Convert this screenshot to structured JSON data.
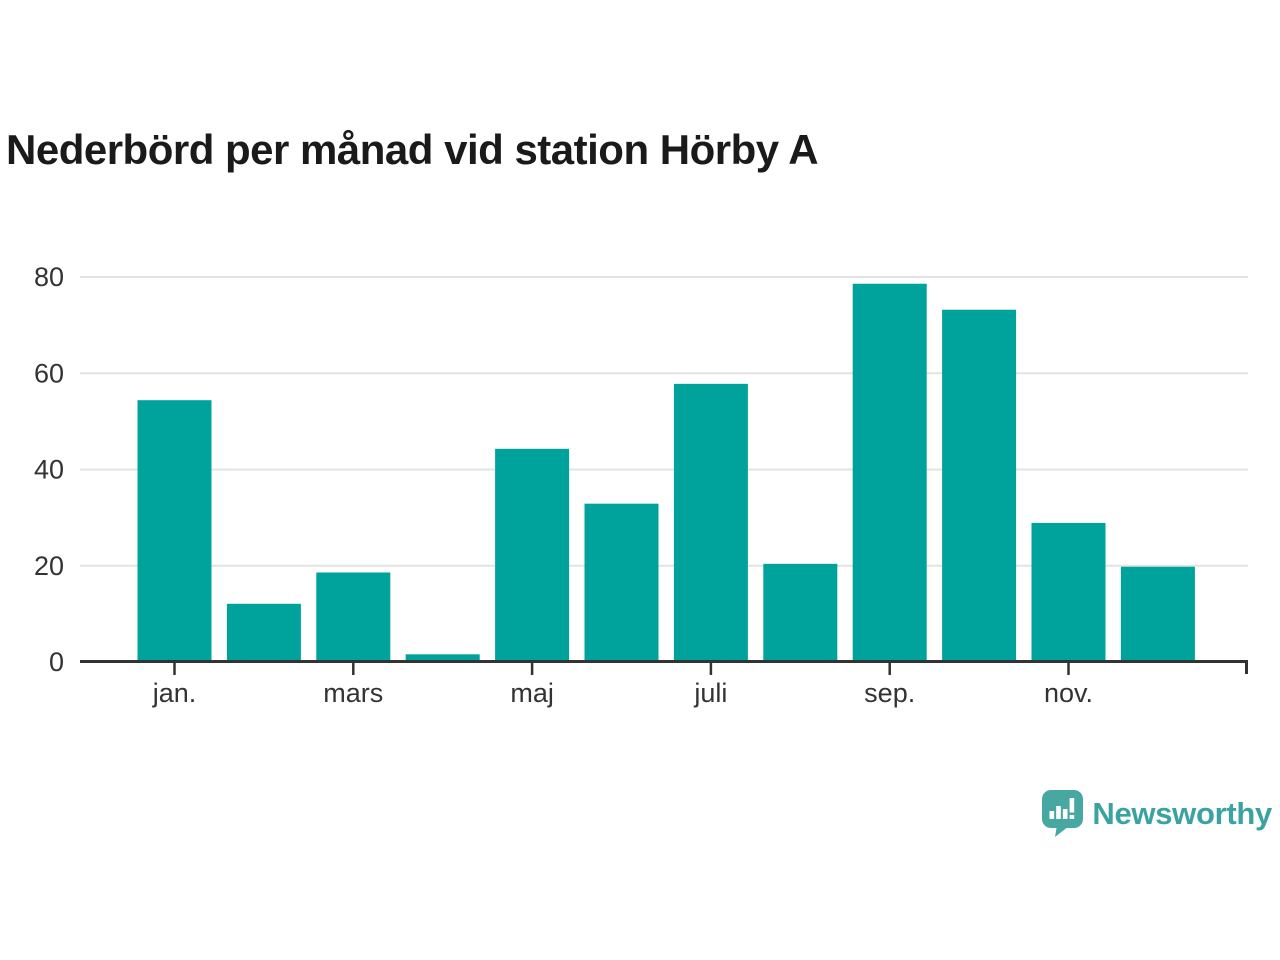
{
  "title": "Nederbörd per månad vid station Hörby A",
  "chart_data": {
    "type": "bar",
    "title": "Nederbörd per månad vid station Hörby A",
    "values": [
      54.4,
      12.1,
      18.6,
      1.6,
      44.3,
      32.9,
      57.8,
      20.4,
      78.6,
      73.2,
      28.9,
      19.8
    ],
    "x_tick_labels": [
      "jan.",
      "",
      "mars",
      "",
      "maj",
      "",
      "juli",
      "",
      "sep.",
      "",
      "nov.",
      ""
    ],
    "y_ticks": [
      0,
      20,
      40,
      60,
      80
    ],
    "ylim": [
      0,
      80
    ],
    "grid": "horizontal",
    "legend": "none",
    "bar_color": "#00a39b",
    "grid_color": "#e3e3e3",
    "axis_color": "#333333",
    "label_color": "#333333"
  },
  "branding": {
    "logo_text": "Newsworthy",
    "logo_text_color": "#3aa3a1",
    "logo_icon_color": "#47a7a3",
    "logo_icon": "newsworthy-speech-bubble-bar-chart-icon"
  },
  "colors": {
    "background": "#ffffff",
    "title_text": "#1a1a1a"
  }
}
